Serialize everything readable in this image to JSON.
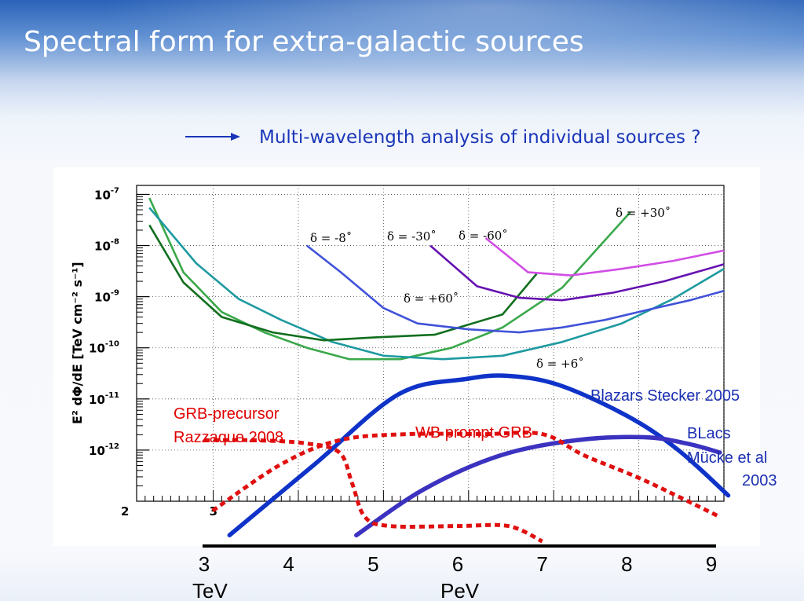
{
  "slide": {
    "title": "Spectral form for extra-galactic sources",
    "subtitle": "Multi-wavelength analysis of individual sources ?"
  },
  "chart_data": [
    {
      "type": "line",
      "ylabel": "E² dΦ/dE  [TeV cm⁻² s⁻¹]",
      "y_log": true,
      "ylim": [
        1e-13,
        1.5e-07
      ],
      "xlim": [
        2.1,
        9.0
      ],
      "y_ticks": [
        {
          "base": "10",
          "exp": "-7",
          "v": 1e-07
        },
        {
          "base": "10",
          "exp": "-8",
          "v": 1e-08
        },
        {
          "base": "10",
          "exp": "-9",
          "v": 1e-09
        },
        {
          "base": "10",
          "exp": "-10",
          "v": 1e-10
        },
        {
          "base": "10",
          "exp": "-11",
          "v": 1e-11
        },
        {
          "base": "10",
          "exp": "-12",
          "v": 1e-12
        }
      ],
      "x_ticks": [
        {
          "label": "2",
          "v": 2.0
        },
        {
          "label": "3",
          "v": 3.0
        }
      ],
      "grid": true,
      "series": [
        {
          "name": "δ = +30˚",
          "color": "#3aa84a",
          "x": [
            2.25,
            2.65,
            3.1,
            3.6,
            4.1,
            4.6,
            5.2,
            5.8,
            6.4,
            7.1,
            7.9
          ],
          "y": [
            8.5e-08,
            3e-09,
            5e-10,
            2e-10,
            1e-10,
            6e-11,
            6e-11,
            1e-10,
            2.5e-10,
            1.5e-09,
            4.5e-08
          ]
        },
        {
          "name": "δ = +6˚",
          "color": "#1e9aa0",
          "x": [
            2.25,
            2.8,
            3.3,
            3.8,
            4.4,
            5.0,
            5.7,
            6.4,
            7.1,
            7.8,
            8.4,
            9.0
          ],
          "y": [
            5.5e-08,
            4.5e-09,
            9e-10,
            3.5e-10,
            1.3e-10,
            7e-11,
            6e-11,
            7e-11,
            1.3e-10,
            3e-10,
            9e-10,
            3.5e-09
          ]
        },
        {
          "name": "δ = +60˚",
          "color": "#116e1e",
          "x": [
            2.25,
            2.65,
            3.1,
            3.7,
            4.3,
            4.9,
            5.6,
            6.4,
            6.8
          ],
          "y": [
            2.5e-08,
            1.9e-09,
            4e-10,
            2e-10,
            1.4e-10,
            1.6e-10,
            1.8e-10,
            4.5e-10,
            2.8e-09
          ]
        },
        {
          "name": "δ = -8˚",
          "color": "#4052d8",
          "x": [
            4.1,
            4.5,
            5.0,
            5.4,
            6.0,
            6.6,
            7.1,
            7.6,
            8.1,
            8.6,
            9.0
          ],
          "y": [
            1e-08,
            3e-09,
            6e-10,
            3e-10,
            2.3e-10,
            2e-10,
            2.5e-10,
            3.5e-10,
            5.5e-10,
            8.5e-10,
            1.3e-09
          ]
        },
        {
          "name": "δ = -30˚",
          "color": "#6612b0",
          "x": [
            5.55,
            6.1,
            6.6,
            7.1,
            7.7,
            8.3,
            9.0
          ],
          "y": [
            1e-08,
            1.6e-09,
            9.5e-10,
            8.5e-10,
            1.2e-09,
            2e-09,
            4.3e-09
          ]
        },
        {
          "name": "δ = -60˚",
          "color": "#d24de6",
          "x": [
            6.2,
            6.7,
            7.2,
            7.8,
            8.4,
            9.0
          ],
          "y": [
            1.4e-08,
            3e-09,
            2.6e-09,
            3.5e-09,
            5e-09,
            8e-09
          ]
        }
      ]
    },
    {
      "type": "line",
      "xlabel_left": "TeV",
      "xlabel_right": "PeV",
      "x_ticks": [
        "3",
        "4",
        "5",
        "6",
        "7",
        "8",
        "9"
      ],
      "xlim": [
        3,
        9
      ],
      "series": [
        {
          "name": "Blazars Stecker 2005",
          "color": "#0f33c8",
          "style": "solid",
          "x": [
            3.3,
            4.3,
            5.3,
            6.1,
            6.6,
            7.2,
            8.0,
            8.6,
            9.2
          ],
          "y": [
            0.3,
            2.6,
            4.9,
            5.4,
            5.5,
            5.2,
            4.2,
            3.1,
            1.6
          ]
        },
        {
          "name": "BLacs Mücke et al 2003",
          "color": "#3c32c0",
          "style": "solid",
          "x": [
            4.8,
            5.6,
            6.5,
            7.4,
            8.2,
            8.7,
            9.1
          ],
          "y": [
            0.3,
            1.8,
            2.9,
            3.4,
            3.5,
            3.3,
            3.0
          ]
        },
        {
          "name": "WB prompt GRB",
          "color": "#e01010",
          "style": "dotted",
          "x": [
            3.1,
            3.9,
            4.6,
            5.4,
            6.3,
            7.0,
            7.5,
            8.2,
            9.1
          ],
          "y": [
            1.1,
            2.6,
            3.4,
            3.6,
            3.6,
            3.6,
            2.9,
            2.1,
            0.9
          ]
        },
        {
          "name": "GRB-precursor Razzaque 2008",
          "color": "#e01010",
          "style": "dotted",
          "x": [
            3.0,
            3.6,
            4.2,
            4.6,
            4.75,
            4.9,
            5.2,
            6.0,
            6.6,
            7.0
          ],
          "y": [
            3.4,
            3.4,
            3.3,
            3.0,
            2.0,
            0.9,
            0.6,
            0.6,
            0.6,
            0.1
          ]
        }
      ]
    }
  ],
  "annotations": {
    "blazars": "Blazars Stecker 2005",
    "blacs_1": "BLacs",
    "blacs_2": "Mücke et al",
    "blacs_3": "2003",
    "grb_prompt": "WB prompt GRB",
    "grb_pre_1": "GRB-precursor",
    "grb_pre_2": "Razzaque 2008"
  }
}
